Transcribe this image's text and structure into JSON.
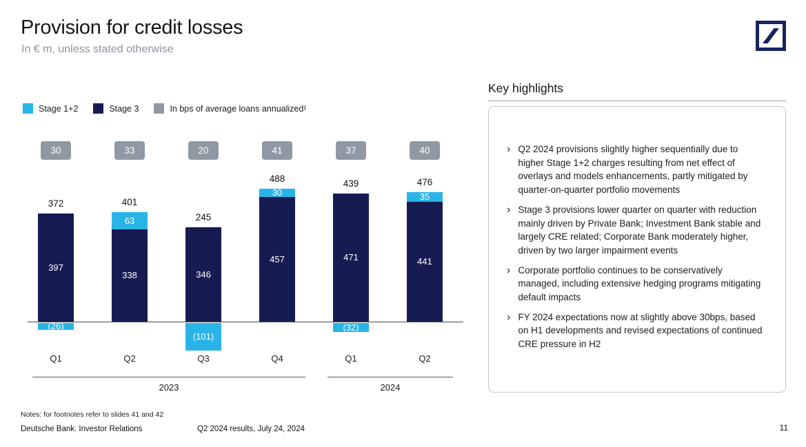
{
  "meta": {
    "title": "Provision for credit losses",
    "subtitle": "In € m, unless stated otherwise",
    "page_number": "11"
  },
  "legend": [
    {
      "label": "Stage 1+2",
      "color": "#29b4e8"
    },
    {
      "label": "Stage 3",
      "color": "#161c52"
    },
    {
      "label": "In bps of average loans annualized¹",
      "color": "#8f99a3"
    }
  ],
  "chart_data": {
    "type": "bar",
    "stacked": true,
    "title": "Provision for credit losses",
    "unit": "€ m",
    "categories": [
      "Q1",
      "Q2",
      "Q3",
      "Q4",
      "Q1",
      "Q2"
    ],
    "year_groups": [
      {
        "label": "2023",
        "span": [
          0,
          3
        ]
      },
      {
        "label": "2024",
        "span": [
          4,
          5
        ]
      }
    ],
    "series": [
      {
        "name": "Stage 1+2",
        "color": "#29b4e8",
        "values": [
          -26,
          63,
          -101,
          30,
          -32,
          35
        ]
      },
      {
        "name": "Stage 3",
        "color": "#161c52",
        "values": [
          397,
          338,
          346,
          457,
          471,
          441
        ]
      }
    ],
    "totals": [
      372,
      401,
      245,
      488,
      439,
      476
    ],
    "bps": [
      30,
      33,
      20,
      41,
      37,
      40
    ],
    "bps_label": "In bps of average loans annualized¹",
    "negative_format": "parentheses"
  },
  "highlights": {
    "title": "Key highlights",
    "bullets": [
      "Q2 2024 provisions slightly higher sequentially due to higher Stage 1+2 charges resulting from net effect of overlays and models enhancements, partly mitigated by quarter-on-quarter portfolio movements",
      "Stage 3 provisions lower quarter on quarter with reduction mainly driven by Private Bank; Investment Bank stable and largely CRE related; Corporate Bank moderately higher, driven by two larger impairment events",
      "Corporate portfolio continues to be conservatively managed, including extensive hedging programs mitigating default impacts",
      "FY 2024 expectations now at slightly above 30bps, based on H1 developments and revised expectations of continued CRE pressure in H2"
    ]
  },
  "footer": {
    "notes": "Notes: for footnotes refer to slides 41 and 42",
    "left": "Deutsche Bank. Investor Relations",
    "center": "Q2 2024 results, July 24, 2024"
  }
}
